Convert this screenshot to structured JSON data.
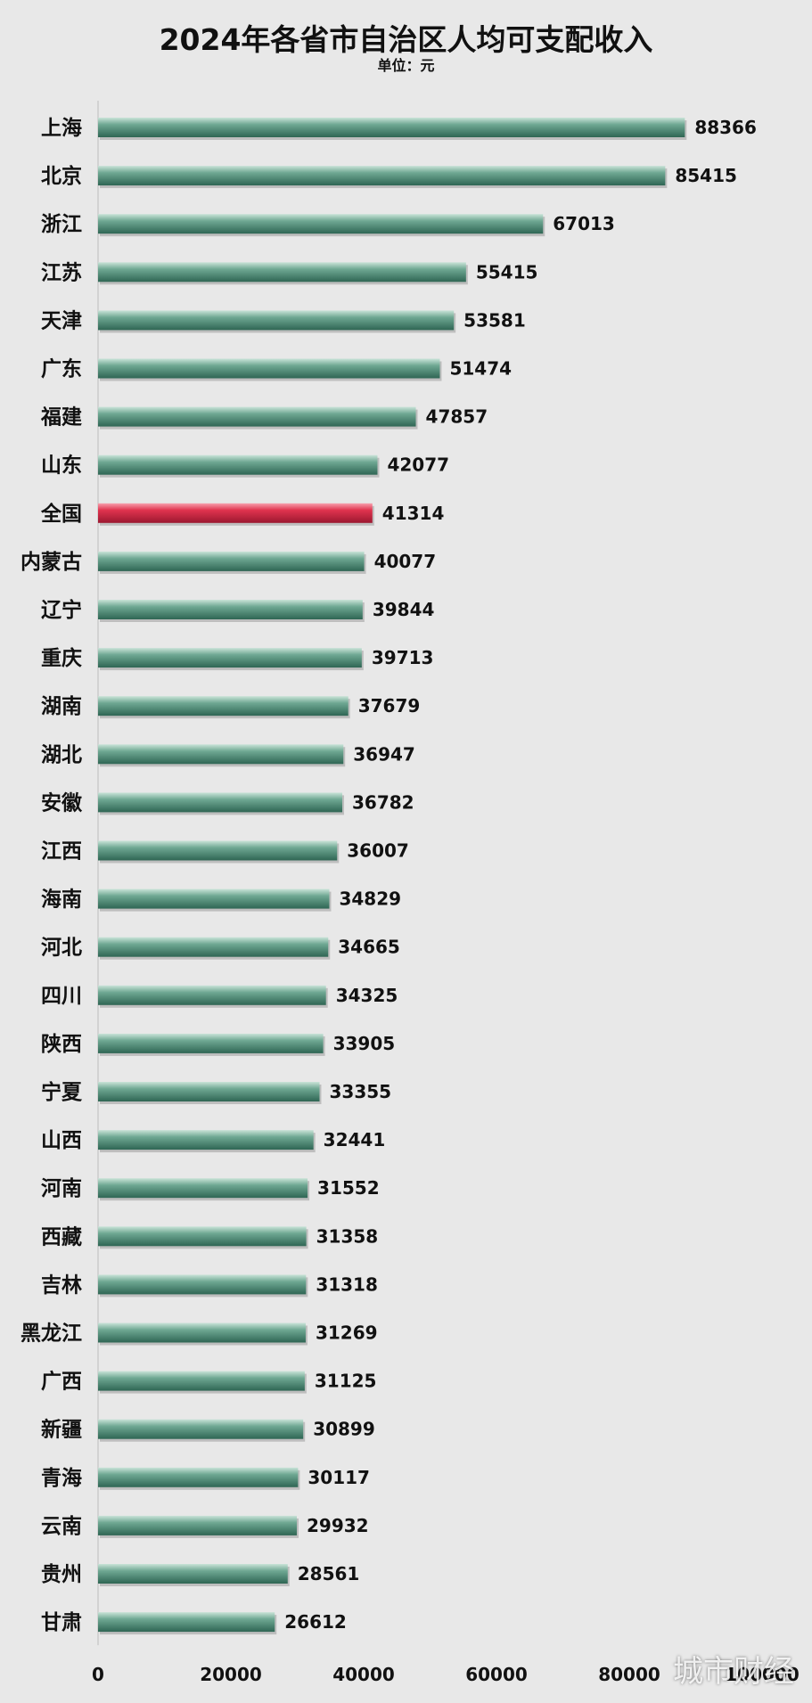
{
  "title": "2024年各省市自治区人均可支配收入",
  "subtitle": "单位：元",
  "watermark": "城市财经",
  "colors": {
    "bar": "#5e9a86",
    "bar_dark": "#2f6654",
    "highlight": "#e0334e",
    "highlight_dark": "#9c1830",
    "background": "#e8e8e8",
    "axis": "#bdbdbd"
  },
  "chart_data": {
    "type": "bar",
    "orientation": "horizontal",
    "title": "2024年各省市自治区人均可支配收入",
    "subtitle": "单位：元",
    "xlim": [
      0,
      100000
    ],
    "xticks": [
      0,
      20000,
      40000,
      60000,
      80000,
      100000
    ],
    "xtick_labels": [
      "0",
      "20000",
      "40000",
      "60000",
      "80000",
      "100000"
    ],
    "highlight": "全国",
    "grid": false,
    "categories": [
      "上海",
      "北京",
      "浙江",
      "江苏",
      "天津",
      "广东",
      "福建",
      "山东",
      "全国",
      "内蒙古",
      "辽宁",
      "重庆",
      "湖南",
      "湖北",
      "安徽",
      "江西",
      "海南",
      "河北",
      "四川",
      "陕西",
      "宁夏",
      "山西",
      "河南",
      "西藏",
      "吉林",
      "黑龙江",
      "广西",
      "新疆",
      "青海",
      "云南",
      "贵州",
      "甘肃"
    ],
    "values": [
      88366,
      85415,
      67013,
      55415,
      53581,
      51474,
      47857,
      42077,
      41314,
      40077,
      39844,
      39713,
      37679,
      36947,
      36782,
      36007,
      34829,
      34665,
      34325,
      33905,
      33355,
      32441,
      31552,
      31358,
      31318,
      31269,
      31125,
      30899,
      30117,
      29932,
      28561,
      26612
    ]
  }
}
